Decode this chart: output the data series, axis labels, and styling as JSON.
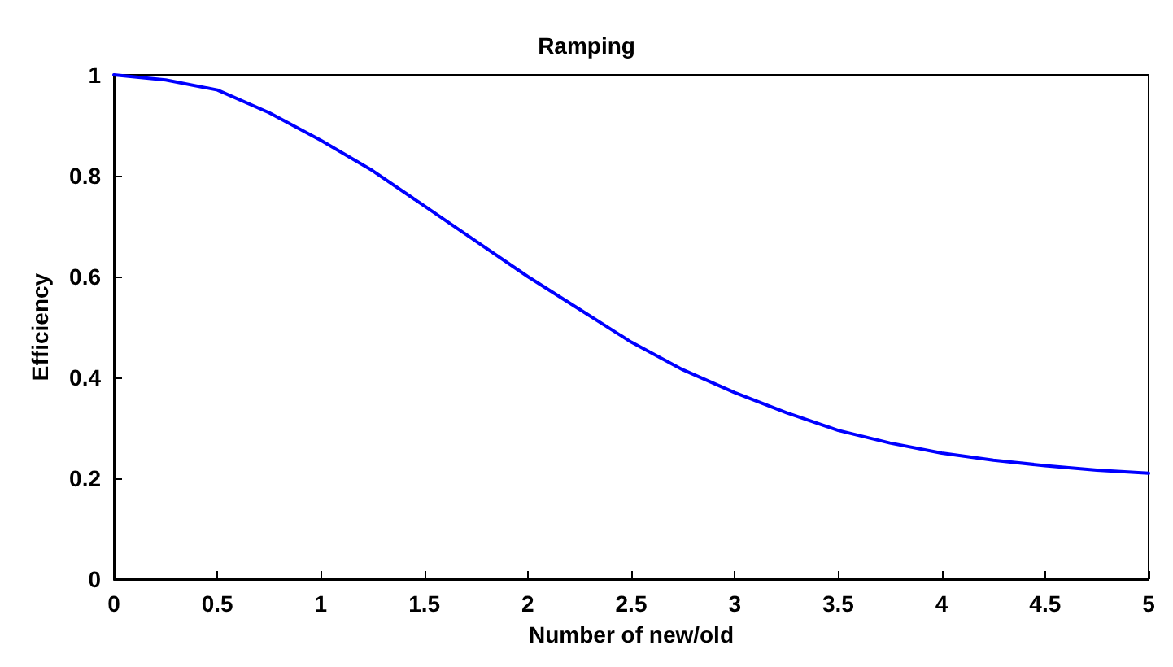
{
  "chart_data": {
    "type": "line",
    "title": "Ramping",
    "xlabel": "Number of new/old",
    "ylabel": "Efficiency",
    "x": [
      0,
      0.25,
      0.5,
      0.75,
      1,
      1.25,
      1.5,
      1.75,
      2,
      2.25,
      2.5,
      2.75,
      3,
      3.25,
      3.5,
      3.75,
      4,
      4.25,
      4.5,
      4.75,
      5
    ],
    "series": [
      {
        "color": "#0000ff",
        "values": [
          1,
          0.99,
          0.97,
          0.925,
          0.87,
          0.81,
          0.74,
          0.67,
          0.6,
          0.535,
          0.47,
          0.415,
          0.37,
          0.33,
          0.295,
          0.27,
          0.25,
          0.236,
          0.225,
          0.216,
          0.21
        ]
      }
    ],
    "xlim": [
      0,
      5
    ],
    "xticks": [
      0,
      0.5,
      1,
      1.5,
      2,
      2.5,
      3,
      3.5,
      4,
      4.5,
      5
    ],
    "ylim": [
      0,
      1
    ],
    "yticks": [
      0,
      0.2,
      0.4,
      0.6,
      0.8,
      1
    ],
    "grid": false,
    "marker": "none",
    "line_style": "solid"
  }
}
